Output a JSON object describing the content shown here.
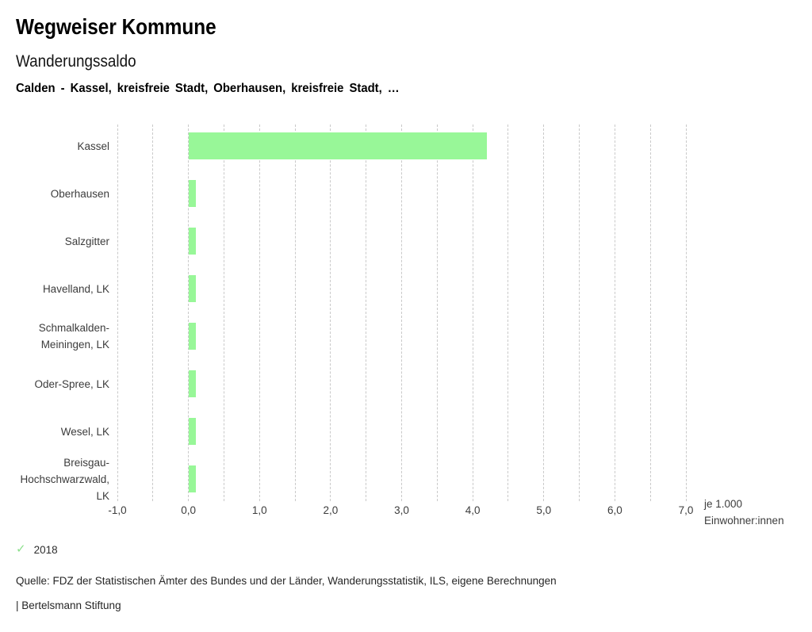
{
  "header": {
    "title": "Wegweiser Kommune",
    "subtitle": "Wanderungssaldo",
    "selection": "Calden - Kassel, kreisfreie Stadt, Oberhausen, kreisfreie Stadt, …"
  },
  "legend": {
    "year": "2018",
    "checkmark": "✓",
    "check_color": "#8ce08c"
  },
  "footer": {
    "source": "Quelle: FDZ der Statistischen Ämter des Bundes und der Länder, Wanderungsstatistik, ILS, eigene Berechnungen",
    "brand": "| Bertelsmann Stiftung"
  },
  "chart_data": {
    "type": "bar",
    "orientation": "horizontal",
    "title": "Wanderungssaldo",
    "subtitle": "Calden - Kassel, kreisfreie Stadt, Oberhausen, kreisfreie Stadt, …",
    "xlabel": "je 1.000 Einwohner:innen",
    "xlabel_lines": [
      "je 1.000",
      "Einwohner:innen"
    ],
    "xlim": [
      -1.0,
      7.0
    ],
    "tick_step": 1.0,
    "grid_step": 0.5,
    "grid": true,
    "grid_style": "dashed-vertical",
    "x_tick_labels": [
      "-1,0",
      "0,0",
      "1,0",
      "2,0",
      "3,0",
      "4,0",
      "5,0",
      "6,0",
      "7,0"
    ],
    "legend_position": "bottom",
    "bar_color": "#98f798",
    "categories": [
      "Kassel",
      "Oberhausen",
      "Salzgitter",
      "Havelland, LK",
      "Schmalkalden-Meiningen, LK",
      "Oder-Spree, LK",
      "Wesel, LK",
      "Breisgau-Hochschwarzwald, LK"
    ],
    "category_label_lines": [
      [
        "Kassel"
      ],
      [
        "Oberhausen"
      ],
      [
        "Salzgitter"
      ],
      [
        "Havelland, LK"
      ],
      [
        "Schmalkalden-",
        "Meiningen, LK"
      ],
      [
        "Oder-Spree, LK"
      ],
      [
        "Wesel, LK"
      ],
      [
        "Breisgau-",
        "Hochschwarzwald,",
        "LK"
      ]
    ],
    "series": [
      {
        "name": "2018",
        "color": "#98f798",
        "values": [
          4.2,
          0.1,
          0.1,
          0.1,
          0.1,
          0.1,
          0.1,
          0.1
        ]
      }
    ]
  }
}
